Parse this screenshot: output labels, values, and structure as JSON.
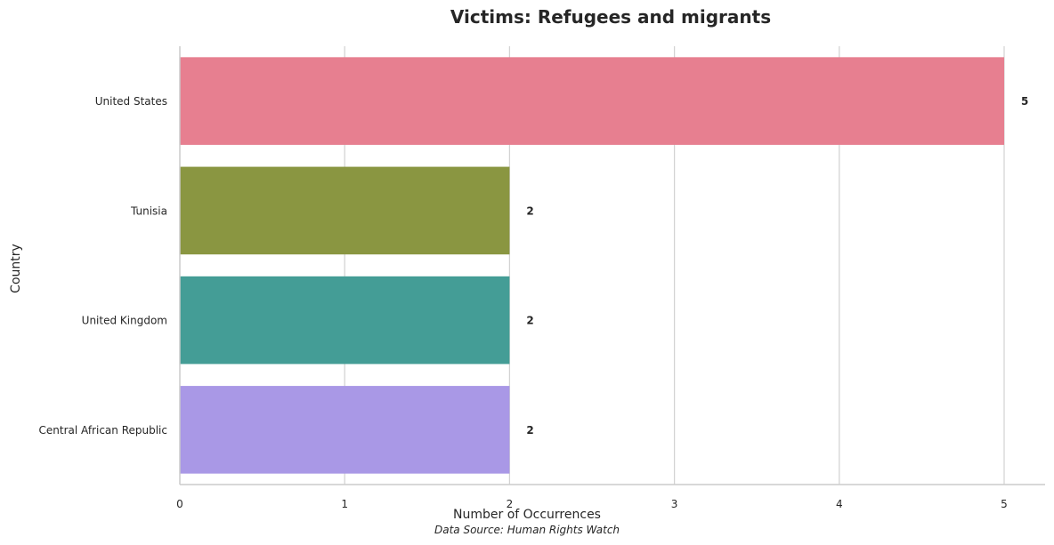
{
  "chart_data": {
    "type": "bar",
    "orientation": "horizontal",
    "title": "Victims: Refugees and migrants",
    "xlabel": "Number of Occurrences",
    "ylabel": "Country",
    "source_note": "Data Source: Human Rights Watch",
    "categories": [
      "United States",
      "Tunisia",
      "United Kingdom",
      "Central African Republic"
    ],
    "values": [
      5,
      2,
      2,
      2
    ],
    "colors": [
      "#e77f90",
      "#8a9641",
      "#449d96",
      "#a998e6"
    ],
    "xlim": [
      0,
      5.25
    ],
    "xticks": [
      0,
      1,
      2,
      3,
      4,
      5
    ],
    "grid": "vertical",
    "data_labels": [
      "5",
      "2",
      "2",
      "2"
    ]
  }
}
